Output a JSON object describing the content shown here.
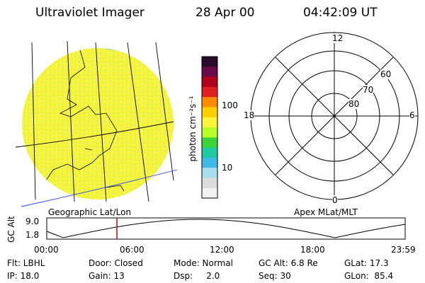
{
  "header": {
    "instrument": "Ultraviolet Imager",
    "date": "28 Apr 00",
    "time": "04:42:09 UT"
  },
  "colorbar": {
    "unit_label": "photon cm⁻²s⁻¹",
    "ticks": [
      "100",
      "10"
    ],
    "colors": [
      "#2a0a2a",
      "#6a0a4a",
      "#b0001a",
      "#e02020",
      "#ff8c00",
      "#ffd000",
      "#fff33a",
      "#b8ff2a",
      "#3ad43a",
      "#20c8a0",
      "#40b8e8",
      "#a8dcf0",
      "#dcdcdc",
      "#f2f2f2"
    ]
  },
  "left_map": {
    "label": "Geographic Lat/Lon",
    "fill_color": "#f3f23c"
  },
  "polar_plot": {
    "label": "Apex MLat/MLT",
    "mlt_labels": {
      "top": "12",
      "right": "6",
      "left": "18",
      "bottom": "0"
    },
    "lat_labels": [
      "60",
      "70",
      "80"
    ]
  },
  "altitude_plot": {
    "ylabel": "GC Alt",
    "y_ticks": [
      "9.0",
      "1.8"
    ],
    "x_ticks": [
      "00:00",
      "06:00",
      "12:00",
      "18:00",
      "23:59"
    ],
    "current_time_marker_hours": 4.7,
    "marker_color": "#d00000"
  },
  "info": {
    "flt": "Flt: LBHL",
    "door": "Door: Closed",
    "mode": "Mode: Normal",
    "gc_alt": "GC Alt: 6.8 Re",
    "glat": "GLat:  17.3",
    "ip": "IP: 18.0",
    "gain": "Gain: 13",
    "dsp": "Dsp:     2.0",
    "seq": "Seq: 30",
    "glon": "GLon:  85.4"
  }
}
